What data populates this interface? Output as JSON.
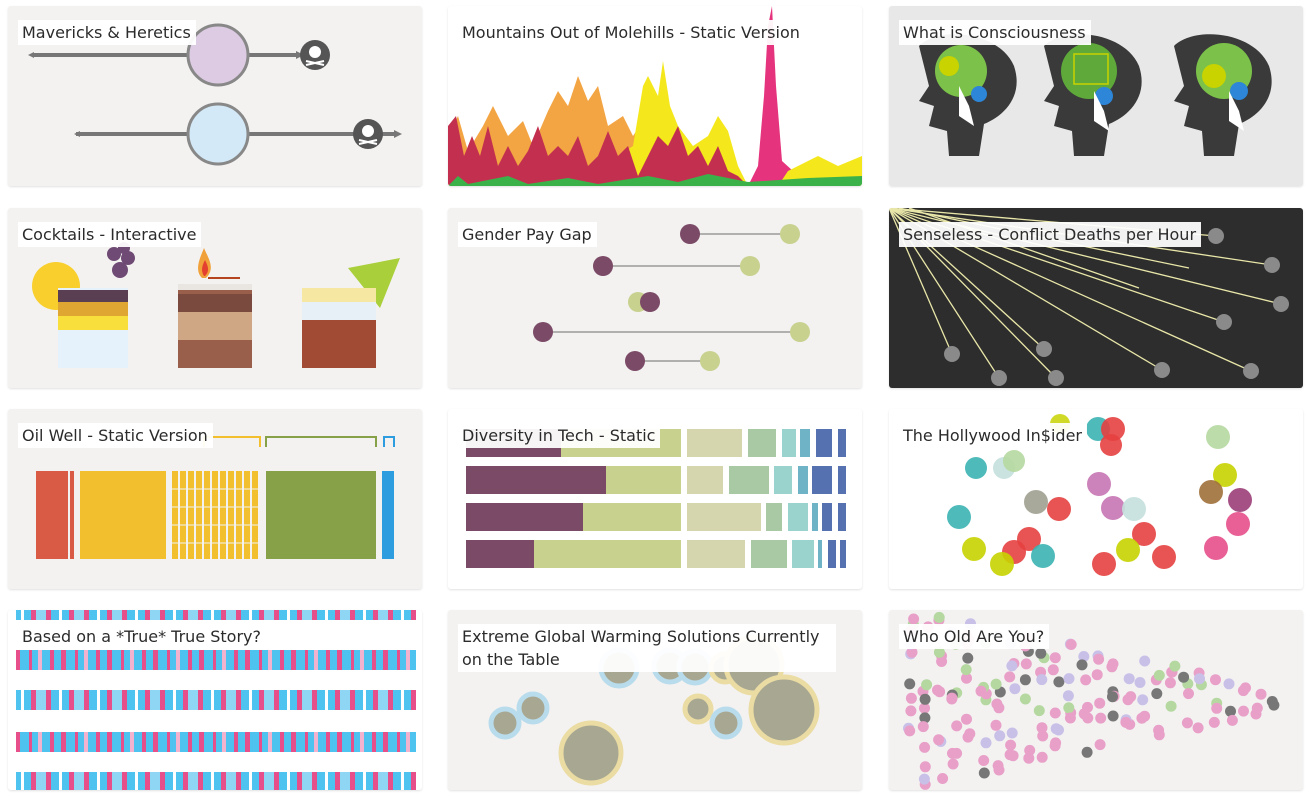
{
  "gallery": {
    "items": [
      {
        "title": "Mavericks & Heretics"
      },
      {
        "title": "Mountains Out of Molehills - Static Version"
      },
      {
        "title": "What is Consciousness"
      },
      {
        "title": "Cocktails - Interactive"
      },
      {
        "title": "Gender Pay Gap"
      },
      {
        "title": "Senseless - Conflict Deaths per Hour"
      },
      {
        "title": "Oil Well - Static Version"
      },
      {
        "title": "Diversity in Tech - Static"
      },
      {
        "title": "The Hollywood In$ider"
      },
      {
        "title": "Based on a *True* True Story?"
      },
      {
        "title": "Extreme Global Warming Solutions Currently on the Table"
      },
      {
        "title": "Who Old Are You?"
      }
    ]
  },
  "colors": {
    "card_bg": "#f3f2f1",
    "dark_card_bg": "#2d2d2d",
    "purple": "#7b4a67",
    "olive": "#c9d18f",
    "pink": "#e64f8a",
    "blue": "#4fc3f0"
  },
  "icons": {
    "skull": "skull-crossbones-icon",
    "head": "head-silhouette-icon",
    "flame": "flame-icon"
  }
}
